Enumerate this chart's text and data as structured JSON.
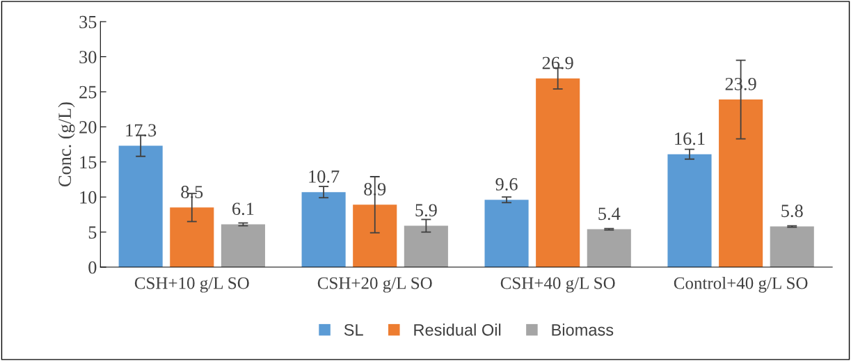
{
  "chart_data": {
    "type": "bar",
    "ylabel": "Conc. (g/L)",
    "categories": [
      "CSH+10 g/L SO",
      "CSH+20 g/L SO",
      "CSH+40 g/L SO",
      "Control+40 g/L SO"
    ],
    "series": [
      {
        "name": "SL",
        "color": "#5b9bd5",
        "values": [
          17.3,
          10.7,
          9.6,
          16.1
        ],
        "errors": [
          1.5,
          0.8,
          0.4,
          0.7
        ]
      },
      {
        "name": "Residual Oil",
        "color": "#ed7d31",
        "values": [
          8.5,
          8.9,
          26.9,
          23.9
        ],
        "errors": [
          2.0,
          4.0,
          1.5,
          5.6
        ]
      },
      {
        "name": "Biomass",
        "color": "#a5a5a5",
        "values": [
          6.1,
          5.9,
          5.4,
          5.8
        ],
        "errors": [
          0.2,
          0.9,
          0.1,
          0.1
        ]
      }
    ],
    "ylim": [
      0,
      35
    ],
    "yticks": [
      0,
      5,
      10,
      15,
      20,
      25,
      30,
      35
    ],
    "data_labels": true,
    "grid": false,
    "legend": "bottom"
  }
}
